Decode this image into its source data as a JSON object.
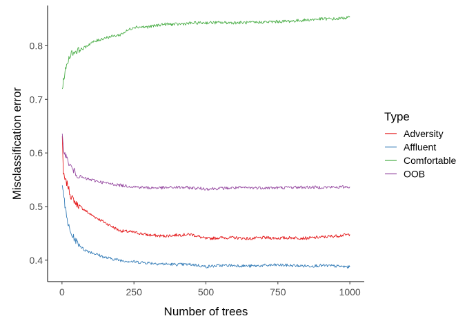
{
  "chart_data": {
    "type": "line",
    "title": "",
    "xlabel": "Number of trees",
    "ylabel": "Misclassification error",
    "xlim": [
      -50,
      1050
    ],
    "ylim": [
      0.36,
      0.875
    ],
    "xticks": [
      0,
      250,
      500,
      750,
      1000
    ],
    "xtick_labels": [
      "0",
      "250",
      "500",
      "750",
      "1000"
    ],
    "yticks": [
      0.4,
      0.5,
      0.6,
      0.7,
      0.8
    ],
    "ytick_labels": [
      "0.4",
      "0.5",
      "0.6",
      "0.7",
      "0.8"
    ],
    "grid": false,
    "legend": {
      "title": "Type",
      "position": "right"
    },
    "series": [
      {
        "name": "Adversity",
        "color": "#e41a1c",
        "points": [
          [
            1,
            0.63
          ],
          [
            5,
            0.56
          ],
          [
            10,
            0.55
          ],
          [
            20,
            0.54
          ],
          [
            30,
            0.52
          ],
          [
            50,
            0.505
          ],
          [
            75,
            0.495
          ],
          [
            100,
            0.485
          ],
          [
            150,
            0.47
          ],
          [
            200,
            0.455
          ],
          [
            250,
            0.452
          ],
          [
            300,
            0.447
          ],
          [
            350,
            0.445
          ],
          [
            400,
            0.447
          ],
          [
            450,
            0.448
          ],
          [
            500,
            0.44
          ],
          [
            550,
            0.442
          ],
          [
            600,
            0.442
          ],
          [
            650,
            0.44
          ],
          [
            700,
            0.442
          ],
          [
            750,
            0.441
          ],
          [
            800,
            0.442
          ],
          [
            850,
            0.441
          ],
          [
            900,
            0.443
          ],
          [
            950,
            0.445
          ],
          [
            1000,
            0.448
          ]
        ]
      },
      {
        "name": "Affluent",
        "color": "#377eb8",
        "points": [
          [
            1,
            0.545
          ],
          [
            5,
            0.53
          ],
          [
            10,
            0.5
          ],
          [
            20,
            0.47
          ],
          [
            30,
            0.45
          ],
          [
            50,
            0.435
          ],
          [
            75,
            0.42
          ],
          [
            100,
            0.415
          ],
          [
            150,
            0.405
          ],
          [
            200,
            0.4
          ],
          [
            250,
            0.397
          ],
          [
            300,
            0.395
          ],
          [
            350,
            0.393
          ],
          [
            400,
            0.392
          ],
          [
            450,
            0.392
          ],
          [
            500,
            0.388
          ],
          [
            550,
            0.39
          ],
          [
            600,
            0.39
          ],
          [
            650,
            0.389
          ],
          [
            700,
            0.39
          ],
          [
            750,
            0.391
          ],
          [
            800,
            0.39
          ],
          [
            850,
            0.389
          ],
          [
            900,
            0.39
          ],
          [
            950,
            0.389
          ],
          [
            1000,
            0.387
          ]
        ]
      },
      {
        "name": "Comfortable",
        "color": "#4daf4a",
        "points": [
          [
            1,
            0.72
          ],
          [
            5,
            0.735
          ],
          [
            10,
            0.75
          ],
          [
            20,
            0.77
          ],
          [
            30,
            0.785
          ],
          [
            50,
            0.79
          ],
          [
            75,
            0.795
          ],
          [
            100,
            0.805
          ],
          [
            150,
            0.815
          ],
          [
            200,
            0.82
          ],
          [
            250,
            0.835
          ],
          [
            300,
            0.835
          ],
          [
            350,
            0.84
          ],
          [
            400,
            0.84
          ],
          [
            450,
            0.842
          ],
          [
            500,
            0.843
          ],
          [
            550,
            0.843
          ],
          [
            600,
            0.843
          ],
          [
            650,
            0.843
          ],
          [
            700,
            0.844
          ],
          [
            750,
            0.845
          ],
          [
            800,
            0.846
          ],
          [
            850,
            0.848
          ],
          [
            900,
            0.85
          ],
          [
            950,
            0.85
          ],
          [
            1000,
            0.853
          ]
        ]
      },
      {
        "name": "OOB",
        "color": "#984ea3",
        "points": [
          [
            1,
            0.63
          ],
          [
            5,
            0.61
          ],
          [
            10,
            0.6
          ],
          [
            20,
            0.585
          ],
          [
            30,
            0.575
          ],
          [
            50,
            0.56
          ],
          [
            75,
            0.553
          ],
          [
            100,
            0.55
          ],
          [
            150,
            0.544
          ],
          [
            200,
            0.54
          ],
          [
            250,
            0.537
          ],
          [
            300,
            0.535
          ],
          [
            350,
            0.535
          ],
          [
            400,
            0.536
          ],
          [
            450,
            0.535
          ],
          [
            500,
            0.533
          ],
          [
            550,
            0.534
          ],
          [
            600,
            0.535
          ],
          [
            650,
            0.535
          ],
          [
            700,
            0.535
          ],
          [
            750,
            0.535
          ],
          [
            800,
            0.536
          ],
          [
            850,
            0.536
          ],
          [
            900,
            0.536
          ],
          [
            950,
            0.536
          ],
          [
            1000,
            0.537
          ]
        ]
      }
    ]
  }
}
